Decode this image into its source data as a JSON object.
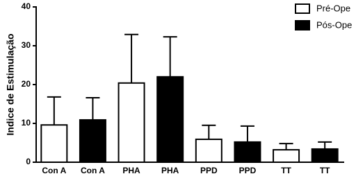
{
  "chart_data": {
    "type": "bar",
    "ylabel": "Indice de Estimulação",
    "categories": [
      "Con A",
      "Con A",
      "PHA",
      "PHA",
      "PPD",
      "PPD",
      "TT",
      "TT"
    ],
    "series": [
      {
        "name": "Pré-Ope",
        "color": "#ffffff",
        "values": [
          9.6,
          null,
          20.4,
          null,
          5.9,
          null,
          3.2,
          null
        ],
        "errors": [
          7.2,
          null,
          12.5,
          null,
          3.6,
          null,
          1.6,
          null
        ]
      },
      {
        "name": "Pós-Ope",
        "color": "#000000",
        "values": [
          null,
          10.9,
          null,
          22.0,
          null,
          5.2,
          null,
          3.4
        ],
        "errors": [
          null,
          5.7,
          null,
          10.3,
          null,
          4.1,
          null,
          1.8
        ]
      }
    ],
    "ylim": [
      0,
      40
    ],
    "yticks": [
      0,
      10,
      20,
      30,
      40
    ]
  }
}
